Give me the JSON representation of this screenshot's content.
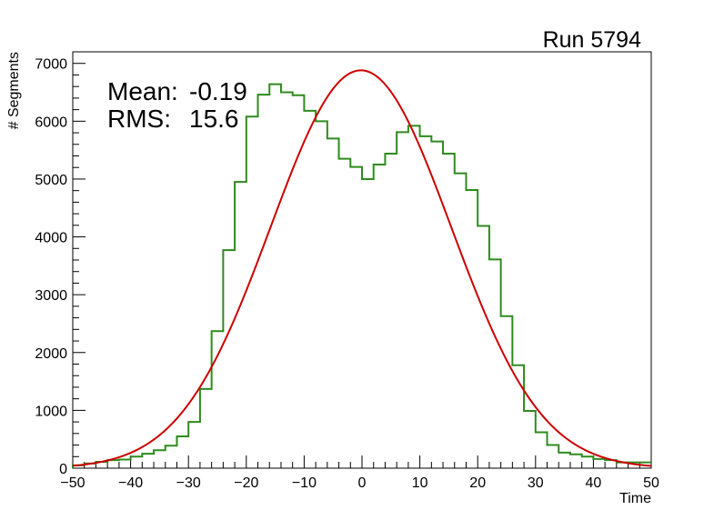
{
  "chart_data": {
    "type": "histogram",
    "title": "Run 5794",
    "xlabel": "Time",
    "ylabel": "# Segments",
    "xlim": [
      -50,
      50
    ],
    "ylim": [
      0,
      7200
    ],
    "x_ticks": [
      -50,
      -40,
      -30,
      -20,
      -10,
      0,
      10,
      20,
      30,
      40,
      50
    ],
    "x_tick_labels": [
      "−50",
      "−40",
      "−30",
      "−20",
      "−10",
      "0",
      "10",
      "20",
      "30",
      "40",
      "50"
    ],
    "y_ticks": [
      0,
      1000,
      2000,
      3000,
      4000,
      5000,
      6000,
      7000
    ],
    "y_tick_labels": [
      "0",
      "1000",
      "2000",
      "3000",
      "4000",
      "5000",
      "6000",
      "7000"
    ],
    "grid": false,
    "stats": {
      "mean_label": "Mean:",
      "mean_value": "-0.19",
      "rms_label": "RMS:",
      "rms_value": "15.6"
    },
    "series": [
      {
        "kind": "step-histogram",
        "color": "#2e8b1e",
        "bin_width": 2,
        "bin_edges_start": -50,
        "values": [
          50,
          80,
          110,
          140,
          150,
          200,
          250,
          310,
          390,
          550,
          800,
          1370,
          2370,
          3770,
          4950,
          6080,
          6460,
          6640,
          6500,
          6450,
          6180,
          6000,
          5700,
          5350,
          5210,
          5000,
          5250,
          5440,
          5810,
          5920,
          5740,
          5650,
          5440,
          5100,
          4810,
          4190,
          3610,
          2630,
          1780,
          990,
          620,
          400,
          270,
          240,
          200,
          160,
          140,
          100,
          100,
          100
        ]
      },
      {
        "kind": "gaussian-fit",
        "color": "#cc0000",
        "amplitude": 6880,
        "mean": -0.19,
        "sigma": 15.6
      }
    ]
  }
}
